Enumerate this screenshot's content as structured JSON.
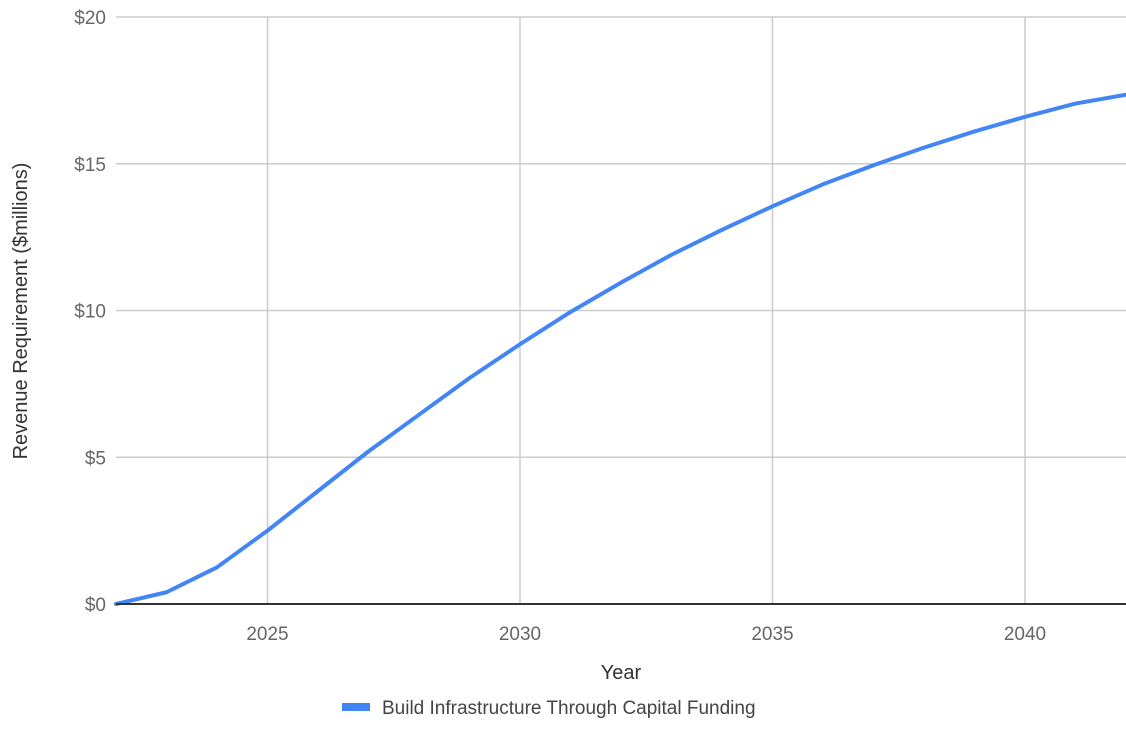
{
  "chart_data": {
    "type": "line",
    "title": "",
    "xlabel": "Year",
    "ylabel": "Revenue Requirement ($millions)",
    "xlim": [
      2022,
      2042
    ],
    "ylim": [
      0,
      20
    ],
    "x_ticks": [
      2025,
      2030,
      2035,
      2040
    ],
    "x_tick_labels": [
      "2025",
      "2030",
      "2035",
      "2040"
    ],
    "y_ticks": [
      0,
      5,
      10,
      15,
      20
    ],
    "y_tick_labels": [
      "$0",
      "$5",
      "$10",
      "$15",
      "$20"
    ],
    "grid": true,
    "legend_position": "bottom",
    "x": [
      2022,
      2023,
      2024,
      2025,
      2026,
      2027,
      2028,
      2029,
      2030,
      2031,
      2032,
      2033,
      2034,
      2035,
      2036,
      2037,
      2038,
      2039,
      2040,
      2041,
      2042
    ],
    "series": [
      {
        "name": "Build Infrastructure Through Capital Funding",
        "color": "#4285f4",
        "values": [
          0.0,
          0.4,
          1.25,
          2.5,
          3.85,
          5.2,
          6.45,
          7.7,
          8.85,
          9.95,
          10.95,
          11.9,
          12.75,
          13.55,
          14.3,
          14.95,
          15.55,
          16.1,
          16.6,
          17.05,
          17.35
        ]
      }
    ]
  }
}
